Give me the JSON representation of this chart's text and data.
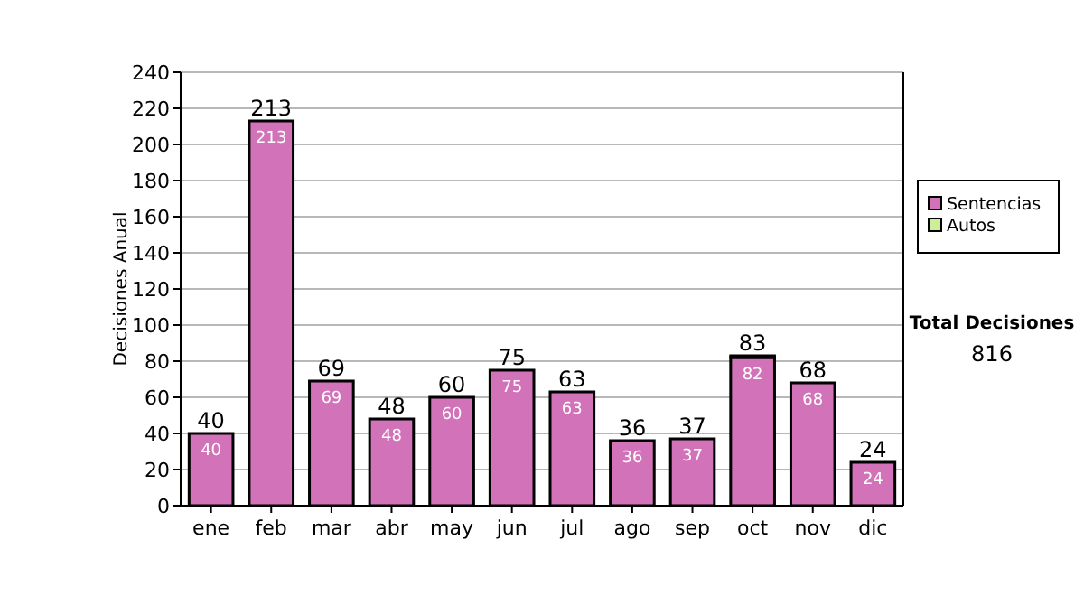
{
  "chart_data": {
    "type": "bar",
    "stacked": true,
    "ylabel": "Decisiones Anual",
    "categories": [
      "ene",
      "feb",
      "mar",
      "abr",
      "may",
      "jun",
      "jul",
      "ago",
      "sep",
      "oct",
      "nov",
      "dic"
    ],
    "series": [
      {
        "name": "Sentencias",
        "color": "#d272b8",
        "values": [
          40,
          213,
          69,
          48,
          60,
          75,
          63,
          36,
          37,
          82,
          68,
          24
        ],
        "value_labels": [
          "40",
          "213",
          "69",
          "48",
          "60",
          "75",
          "63",
          "36",
          "37",
          "82",
          "68",
          "24"
        ]
      },
      {
        "name": "Autos",
        "color": "#ccee99",
        "values": [
          0,
          0,
          0,
          0,
          0,
          0,
          0,
          0,
          0,
          1,
          0,
          0
        ]
      }
    ],
    "totals": [
      "40",
      "213",
      "69",
      "48",
      "60",
      "75",
      "63",
      "36",
      "37",
      "83",
      "68",
      "24"
    ],
    "ylim": [
      0,
      240
    ],
    "yticks": [
      0,
      20,
      40,
      60,
      80,
      100,
      120,
      140,
      160,
      180,
      200,
      220,
      240
    ],
    "grid": "y",
    "legend": "right",
    "annotations": [
      "Total Decisiones",
      "816"
    ]
  }
}
